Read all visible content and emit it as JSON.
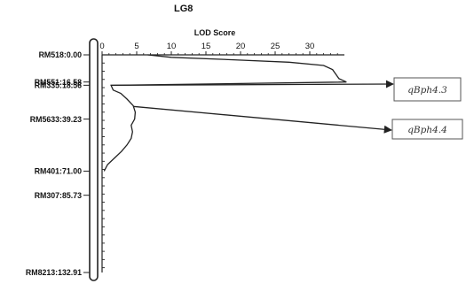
{
  "chart_data": {
    "type": "line",
    "title": "LG8",
    "xlabel": "LOD Score",
    "ylabel": "",
    "xlim": [
      0,
      35
    ],
    "ylim": [
      0,
      132.91
    ],
    "x_ticks": [
      0,
      5,
      10,
      15,
      20,
      25,
      30
    ],
    "grid": false,
    "markers": [
      {
        "label": "RM518:0.00",
        "position": 0.0
      },
      {
        "label": "RM551:16.58",
        "position": 16.58
      },
      {
        "label": "RM335:18.56",
        "position": 18.56
      },
      {
        "label": "RM5633:39.23",
        "position": 39.23
      },
      {
        "label": "RM401:71.00",
        "position": 71.0
      },
      {
        "label": "RM307:85.73",
        "position": 85.73
      },
      {
        "label": "RM8213:132.91",
        "position": 132.91
      }
    ],
    "series": [
      {
        "points": [
          {
            "pos": 0,
            "lod": 6.6
          },
          {
            "pos": 1.5,
            "lod": 10
          },
          {
            "pos": 3,
            "lod": 19
          },
          {
            "pos": 4.5,
            "lod": 27
          },
          {
            "pos": 6.5,
            "lod": 32
          },
          {
            "pos": 9,
            "lod": 33.3
          },
          {
            "pos": 12,
            "lod": 33.8
          },
          {
            "pos": 14.5,
            "lod": 34.2
          },
          {
            "pos": 16.58,
            "lod": 35.3
          },
          {
            "pos": 17.5,
            "lod": 20
          },
          {
            "pos": 18.56,
            "lod": 1.3
          },
          {
            "pos": 21.5,
            "lod": 1.6
          },
          {
            "pos": 23.5,
            "lod": 2.7
          },
          {
            "pos": 27,
            "lod": 3.6
          },
          {
            "pos": 31,
            "lod": 4.5
          },
          {
            "pos": 35,
            "lod": 4.8
          },
          {
            "pos": 39.23,
            "lod": 4.7
          },
          {
            "pos": 43,
            "lod": 4.2
          },
          {
            "pos": 47,
            "lod": 4.4
          },
          {
            "pos": 51,
            "lod": 4.2
          },
          {
            "pos": 55,
            "lod": 3.6
          },
          {
            "pos": 59,
            "lod": 2.8
          },
          {
            "pos": 63,
            "lod": 1.8
          },
          {
            "pos": 67,
            "lod": 0.8
          },
          {
            "pos": 71,
            "lod": 0.3
          }
        ]
      }
    ],
    "annotations": [
      {
        "text": "qBph4.3",
        "from_pos": 18.56,
        "from_lod": 1.3
      },
      {
        "text": "qBph4.4",
        "from_pos": 31.5,
        "from_lod": 4.5
      }
    ]
  }
}
